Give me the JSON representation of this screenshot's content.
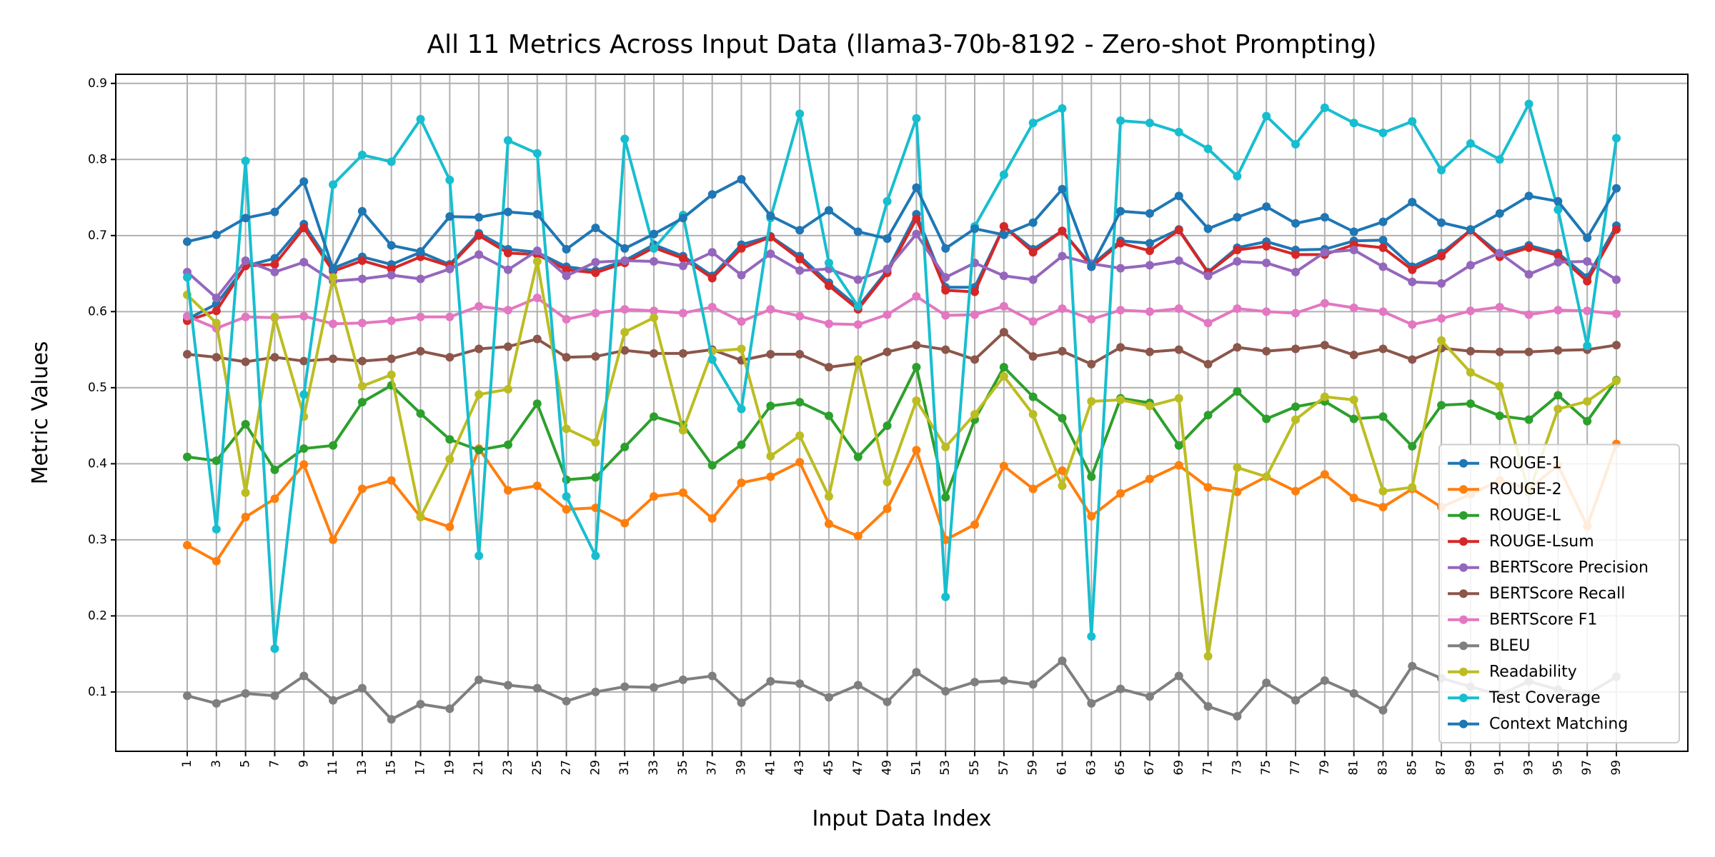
{
  "chart_data": {
    "type": "line",
    "title": "All 11 Metrics Across Input Data (llama3-70b-8192 - Zero-shot Prompting)",
    "xlabel": "Input Data Index",
    "ylabel": "Metric Values",
    "x": [
      1,
      3,
      5,
      7,
      9,
      11,
      13,
      15,
      17,
      19,
      21,
      23,
      25,
      27,
      29,
      31,
      33,
      35,
      37,
      39,
      41,
      43,
      45,
      47,
      49,
      51,
      53,
      55,
      57,
      59,
      61,
      63,
      65,
      67,
      69,
      71,
      73,
      75,
      77,
      79,
      81,
      83,
      85,
      87,
      89,
      91,
      93,
      95,
      97,
      99
    ],
    "xticks": [
      "1",
      "3",
      "5",
      "7",
      "9",
      "11",
      "13",
      "15",
      "17",
      "19",
      "21",
      "23",
      "25",
      "27",
      "29",
      "31",
      "33",
      "35",
      "37",
      "39",
      "41",
      "43",
      "45",
      "47",
      "49",
      "51",
      "53",
      "55",
      "57",
      "59",
      "61",
      "63",
      "65",
      "67",
      "69",
      "71",
      "73",
      "75",
      "77",
      "79",
      "81",
      "83",
      "85",
      "87",
      "89",
      "91",
      "93",
      "95",
      "97",
      "99"
    ],
    "yticks": [
      "0.1",
      "0.2",
      "0.3",
      "0.4",
      "0.5",
      "0.6",
      "0.7",
      "0.8",
      "0.9"
    ],
    "ylim": [
      0.022,
      0.912
    ],
    "xlim": [
      -3.9,
      103.9
    ],
    "grid": true,
    "legend_position": "bottom-right",
    "series": [
      {
        "name": "ROUGE-1",
        "color": "#1f77b4",
        "values": [
          0.59,
          0.61,
          0.66,
          0.67,
          0.715,
          0.657,
          0.672,
          0.662,
          0.678,
          0.662,
          0.703,
          0.682,
          0.678,
          0.659,
          0.654,
          0.667,
          0.688,
          0.673,
          0.647,
          0.688,
          0.699,
          0.673,
          0.638,
          0.606,
          0.654,
          0.728,
          0.632,
          0.632,
          0.712,
          0.682,
          0.706,
          0.661,
          0.693,
          0.69,
          0.708,
          0.652,
          0.684,
          0.692,
          0.681,
          0.682,
          0.693,
          0.694,
          0.659,
          0.677,
          0.707,
          0.676,
          0.687,
          0.677,
          0.645,
          0.713
        ]
      },
      {
        "name": "ROUGE-2",
        "color": "#ff7f0e",
        "values": [
          0.293,
          0.272,
          0.33,
          0.354,
          0.399,
          0.3,
          0.367,
          0.378,
          0.33,
          0.317,
          0.42,
          0.365,
          0.371,
          0.34,
          0.342,
          0.322,
          0.357,
          0.362,
          0.328,
          0.375,
          0.383,
          0.402,
          0.321,
          0.305,
          0.341,
          0.418,
          0.3,
          0.32,
          0.397,
          0.367,
          0.391,
          0.331,
          0.361,
          0.38,
          0.398,
          0.369,
          0.363,
          0.383,
          0.364,
          0.386,
          0.355,
          0.343,
          0.367,
          0.343,
          0.36,
          0.378,
          0.367,
          0.398,
          0.318,
          0.426
        ]
      },
      {
        "name": "ROUGE-L",
        "color": "#2ca02c",
        "values": [
          0.409,
          0.404,
          0.452,
          0.392,
          0.42,
          0.424,
          0.481,
          0.503,
          0.466,
          0.432,
          0.418,
          0.425,
          0.479,
          0.379,
          0.382,
          0.422,
          0.462,
          0.451,
          0.398,
          0.425,
          0.476,
          0.481,
          0.463,
          0.409,
          0.45,
          0.527,
          0.356,
          0.458,
          0.527,
          0.488,
          0.46,
          0.383,
          0.486,
          0.48,
          0.424,
          0.464,
          0.495,
          0.459,
          0.475,
          0.482,
          0.459,
          0.462,
          0.423,
          0.477,
          0.479,
          0.463,
          0.458,
          0.49,
          0.456,
          0.51
        ]
      },
      {
        "name": "ROUGE-Lsum",
        "color": "#d62728",
        "values": [
          0.588,
          0.601,
          0.66,
          0.662,
          0.71,
          0.653,
          0.667,
          0.656,
          0.672,
          0.66,
          0.7,
          0.677,
          0.675,
          0.655,
          0.651,
          0.664,
          0.684,
          0.67,
          0.644,
          0.683,
          0.698,
          0.669,
          0.634,
          0.603,
          0.651,
          0.722,
          0.628,
          0.626,
          0.712,
          0.678,
          0.706,
          0.659,
          0.69,
          0.68,
          0.707,
          0.651,
          0.681,
          0.686,
          0.675,
          0.675,
          0.688,
          0.684,
          0.655,
          0.673,
          0.707,
          0.672,
          0.684,
          0.674,
          0.64,
          0.708
        ]
      },
      {
        "name": "BERTScore Precision",
        "color": "#9467bd",
        "values": [
          0.652,
          0.618,
          0.667,
          0.652,
          0.665,
          0.64,
          0.643,
          0.648,
          0.643,
          0.656,
          0.675,
          0.655,
          0.68,
          0.647,
          0.665,
          0.667,
          0.666,
          0.66,
          0.678,
          0.648,
          0.676,
          0.654,
          0.656,
          0.642,
          0.656,
          0.702,
          0.645,
          0.664,
          0.647,
          0.642,
          0.673,
          0.663,
          0.657,
          0.661,
          0.667,
          0.647,
          0.666,
          0.664,
          0.652,
          0.678,
          0.681,
          0.659,
          0.639,
          0.637,
          0.661,
          0.677,
          0.649,
          0.665,
          0.666,
          0.642
        ]
      },
      {
        "name": "BERTScore Recall",
        "color": "#8c564b",
        "values": [
          0.544,
          0.54,
          0.534,
          0.54,
          0.535,
          0.538,
          0.535,
          0.538,
          0.548,
          0.54,
          0.551,
          0.554,
          0.564,
          0.54,
          0.541,
          0.549,
          0.545,
          0.545,
          0.55,
          0.536,
          0.544,
          0.544,
          0.527,
          0.532,
          0.547,
          0.556,
          0.55,
          0.537,
          0.573,
          0.541,
          0.548,
          0.531,
          0.553,
          0.547,
          0.55,
          0.531,
          0.553,
          0.548,
          0.551,
          0.556,
          0.543,
          0.551,
          0.537,
          0.552,
          0.548,
          0.547,
          0.547,
          0.549,
          0.55,
          0.556
        ]
      },
      {
        "name": "BERTScore F1",
        "color": "#e377c2",
        "values": [
          0.594,
          0.578,
          0.593,
          0.592,
          0.594,
          0.584,
          0.585,
          0.588,
          0.593,
          0.593,
          0.607,
          0.602,
          0.618,
          0.59,
          0.598,
          0.603,
          0.601,
          0.598,
          0.606,
          0.587,
          0.603,
          0.594,
          0.584,
          0.583,
          0.596,
          0.62,
          0.595,
          0.596,
          0.607,
          0.587,
          0.604,
          0.59,
          0.602,
          0.6,
          0.604,
          0.585,
          0.604,
          0.6,
          0.598,
          0.611,
          0.605,
          0.6,
          0.583,
          0.591,
          0.601,
          0.606,
          0.596,
          0.602,
          0.601,
          0.597
        ]
      },
      {
        "name": "BLEU",
        "color": "#7f7f7f",
        "values": [
          0.095,
          0.085,
          0.098,
          0.095,
          0.121,
          0.089,
          0.105,
          0.064,
          0.084,
          0.078,
          0.116,
          0.109,
          0.105,
          0.088,
          0.1,
          0.107,
          0.106,
          0.116,
          0.121,
          0.086,
          0.114,
          0.111,
          0.093,
          0.109,
          0.087,
          0.126,
          0.101,
          0.113,
          0.115,
          0.11,
          0.141,
          0.085,
          0.104,
          0.094,
          0.121,
          0.081,
          0.068,
          0.112,
          0.089,
          0.115,
          0.098,
          0.076,
          0.134,
          0.118,
          0.107,
          0.096,
          0.114,
          0.103,
          0.097,
          0.12
        ]
      },
      {
        "name": "Readability",
        "color": "#bcbd22",
        "values": [
          0.622,
          0.585,
          0.362,
          0.593,
          0.462,
          0.645,
          0.502,
          0.517,
          0.33,
          0.406,
          0.491,
          0.498,
          0.666,
          0.446,
          0.428,
          0.573,
          0.592,
          0.444,
          0.548,
          0.551,
          0.41,
          0.437,
          0.357,
          0.537,
          0.376,
          0.483,
          0.422,
          0.465,
          0.515,
          0.465,
          0.371,
          0.482,
          0.484,
          0.476,
          0.486,
          0.147,
          0.395,
          0.383,
          0.458,
          0.488,
          0.484,
          0.364,
          0.369,
          0.562,
          0.52,
          0.502,
          0.362,
          0.472,
          0.482,
          0.509
        ]
      },
      {
        "name": "Test Coverage",
        "color": "#17becf",
        "values": [
          0.645,
          0.314,
          0.798,
          0.157,
          0.491,
          0.767,
          0.806,
          0.797,
          0.853,
          0.773,
          0.279,
          0.825,
          0.808,
          0.357,
          0.279,
          0.827,
          0.683,
          0.727,
          0.537,
          0.472,
          0.723,
          0.86,
          0.664,
          0.607,
          0.745,
          0.854,
          0.225,
          0.712,
          0.78,
          0.848,
          0.867,
          0.173,
          0.851,
          0.848,
          0.836,
          0.814,
          0.778,
          0.857,
          0.82,
          0.868,
          0.848,
          0.835,
          0.85,
          0.786,
          0.821,
          0.8,
          0.873,
          0.734,
          0.555,
          0.828
        ]
      },
      {
        "name": "Context Matching",
        "color": "#1f77b4",
        "values": [
          0.692,
          0.701,
          0.723,
          0.731,
          0.771,
          0.656,
          0.732,
          0.687,
          0.679,
          0.725,
          0.724,
          0.731,
          0.728,
          0.682,
          0.71,
          0.683,
          0.702,
          0.723,
          0.754,
          0.774,
          0.726,
          0.707,
          0.733,
          0.705,
          0.696,
          0.763,
          0.683,
          0.709,
          0.701,
          0.717,
          0.761,
          0.659,
          0.732,
          0.729,
          0.752,
          0.709,
          0.724,
          0.738,
          0.716,
          0.724,
          0.705,
          0.718,
          0.744,
          0.717,
          0.708,
          0.729,
          0.752,
          0.745,
          0.697,
          0.762
        ]
      }
    ]
  }
}
